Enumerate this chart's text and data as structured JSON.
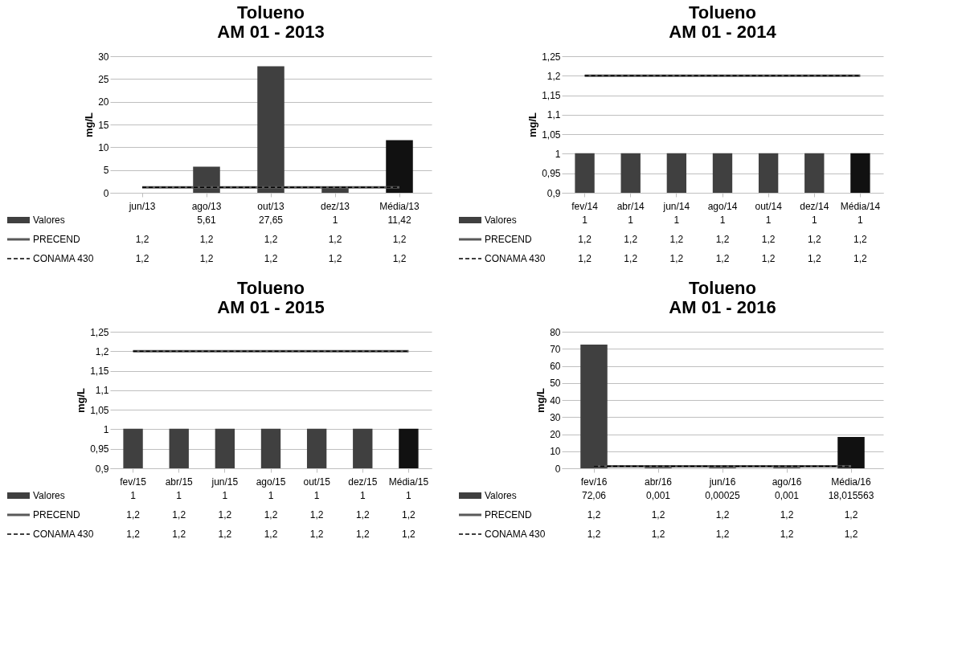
{
  "chart_data": [
    {
      "type": "bar",
      "title": "Tolueno\nAM 01 - 2013",
      "ylabel": "mg/L",
      "categories": [
        "jun/13",
        "ago/13",
        "out/13",
        "dez/13",
        "Média/13"
      ],
      "ylim": [
        0,
        30
      ],
      "yticks": [
        0,
        5,
        10,
        15,
        20,
        25,
        30
      ],
      "grid": "y",
      "legend": "bottom",
      "series": [
        {
          "name": "Valores",
          "colors": [
            "#404040",
            "#404040",
            "#404040",
            "#404040",
            "#111111"
          ],
          "values": [
            null,
            5.61,
            27.65,
            1,
            11.42
          ],
          "value_labels": [
            null,
            "5,61",
            "27,65",
            "1",
            "11,42"
          ]
        },
        {
          "name": "PRECEND",
          "type": "line",
          "color": "#595959",
          "line_style": "solid",
          "values": [
            1.2,
            1.2,
            1.2,
            1.2,
            1.2
          ],
          "value_labels": [
            "1,2",
            "1,2",
            "1,2",
            "1,2",
            "1,2"
          ]
        },
        {
          "name": "CONAMA 430",
          "type": "line",
          "color": "#000000",
          "line_style": "dashed",
          "values": [
            1.2,
            1.2,
            1.2,
            1.2,
            1.2
          ],
          "value_labels": [
            "1,2",
            "1,2",
            "1,2",
            "1,2",
            "1,2"
          ]
        }
      ]
    },
    {
      "type": "bar",
      "title": "Tolueno\nAM 01 - 2014",
      "ylabel": "mg/L",
      "categories": [
        "fev/14",
        "abr/14",
        "jun/14",
        "ago/14",
        "out/14",
        "dez/14",
        "Média/14"
      ],
      "ylim": [
        0.9,
        1.25
      ],
      "yticks": [
        {
          "value": 0.9,
          "label": "0,9"
        },
        {
          "value": 0.95,
          "label": "0,95"
        },
        1,
        {
          "value": 1.05,
          "label": "1,05"
        },
        {
          "value": 1.1,
          "label": "1,1"
        },
        {
          "value": 1.15,
          "label": "1,15"
        },
        {
          "value": 1.2,
          "label": "1,2"
        },
        {
          "value": 1.25,
          "label": "1,25"
        }
      ],
      "grid": "y",
      "legend": "bottom",
      "series": [
        {
          "name": "Valores",
          "colors": [
            "#404040",
            "#404040",
            "#404040",
            "#404040",
            "#404040",
            "#404040",
            "#111111"
          ],
          "values": [
            1,
            1,
            1,
            1,
            1,
            1,
            1
          ],
          "value_labels": [
            "1",
            "1",
            "1",
            "1",
            "1",
            "1",
            "1"
          ]
        },
        {
          "name": "PRECEND",
          "type": "line",
          "color": "#595959",
          "line_style": "solid",
          "values": [
            1.2,
            1.2,
            1.2,
            1.2,
            1.2,
            1.2,
            1.2
          ],
          "value_labels": [
            "1,2",
            "1,2",
            "1,2",
            "1,2",
            "1,2",
            "1,2",
            "1,2"
          ]
        },
        {
          "name": "CONAMA 430",
          "type": "line",
          "color": "#000000",
          "line_style": "dashed",
          "values": [
            1.2,
            1.2,
            1.2,
            1.2,
            1.2,
            1.2,
            1.2
          ],
          "value_labels": [
            "1,2",
            "1,2",
            "1,2",
            "1,2",
            "1,2",
            "1,2",
            "1,2"
          ]
        }
      ]
    },
    {
      "type": "bar",
      "title": "Tolueno\nAM 01 - 2015",
      "ylabel": "mg/L",
      "categories": [
        "fev/15",
        "abr/15",
        "jun/15",
        "ago/15",
        "out/15",
        "dez/15",
        "Média/15"
      ],
      "ylim": [
        0.9,
        1.25
      ],
      "yticks": [
        {
          "value": 0.9,
          "label": "0,9"
        },
        {
          "value": 0.95,
          "label": "0,95"
        },
        1,
        {
          "value": 1.05,
          "label": "1,05"
        },
        {
          "value": 1.1,
          "label": "1,1"
        },
        {
          "value": 1.15,
          "label": "1,15"
        },
        {
          "value": 1.2,
          "label": "1,2"
        },
        {
          "value": 1.25,
          "label": "1,25"
        }
      ],
      "grid": "y",
      "legend": "bottom",
      "series": [
        {
          "name": "Valores",
          "colors": [
            "#404040",
            "#404040",
            "#404040",
            "#404040",
            "#404040",
            "#404040",
            "#111111"
          ],
          "values": [
            1,
            1,
            1,
            1,
            1,
            1,
            1
          ],
          "value_labels": [
            "1",
            "1",
            "1",
            "1",
            "1",
            "1",
            "1"
          ]
        },
        {
          "name": "PRECEND",
          "type": "line",
          "color": "#595959",
          "line_style": "solid",
          "values": [
            1.2,
            1.2,
            1.2,
            1.2,
            1.2,
            1.2,
            1.2
          ],
          "value_labels": [
            "1,2",
            "1,2",
            "1,2",
            "1,2",
            "1,2",
            "1,2",
            "1,2"
          ]
        },
        {
          "name": "CONAMA 430",
          "type": "line",
          "color": "#000000",
          "line_style": "dashed",
          "values": [
            1.2,
            1.2,
            1.2,
            1.2,
            1.2,
            1.2,
            1.2
          ],
          "value_labels": [
            "1,2",
            "1,2",
            "1,2",
            "1,2",
            "1,2",
            "1,2",
            "1,2"
          ]
        }
      ]
    },
    {
      "type": "bar",
      "title": "Tolueno\nAM 01 - 2016",
      "ylabel": "mg/L",
      "categories": [
        "fev/16",
        "abr/16",
        "jun/16",
        "ago/16",
        "Média/16"
      ],
      "ylim": [
        0,
        80
      ],
      "yticks": [
        0,
        10,
        20,
        30,
        40,
        50,
        60,
        70,
        80
      ],
      "grid": "y",
      "legend": "bottom",
      "series": [
        {
          "name": "Valores",
          "colors": [
            "#404040",
            "#404040",
            "#404040",
            "#404040",
            "#111111"
          ],
          "values": [
            72.06,
            0.001,
            0.00025,
            0.001,
            18.015563
          ],
          "value_labels": [
            "72,06",
            "0,001",
            "0,00025",
            "0,001",
            "18,015563"
          ]
        },
        {
          "name": "PRECEND",
          "type": "line",
          "color": "#595959",
          "line_style": "solid",
          "values": [
            1.2,
            1.2,
            1.2,
            1.2,
            1.2
          ],
          "value_labels": [
            "1,2",
            "1,2",
            "1,2",
            "1,2",
            "1,2"
          ]
        },
        {
          "name": "CONAMA 430",
          "type": "line",
          "color": "#000000",
          "line_style": "dashed",
          "values": [
            1.2,
            1.2,
            1.2,
            1.2,
            1.2
          ],
          "value_labels": [
            "1,2",
            "1,2",
            "1,2",
            "1,2",
            "1,2"
          ]
        }
      ]
    }
  ]
}
